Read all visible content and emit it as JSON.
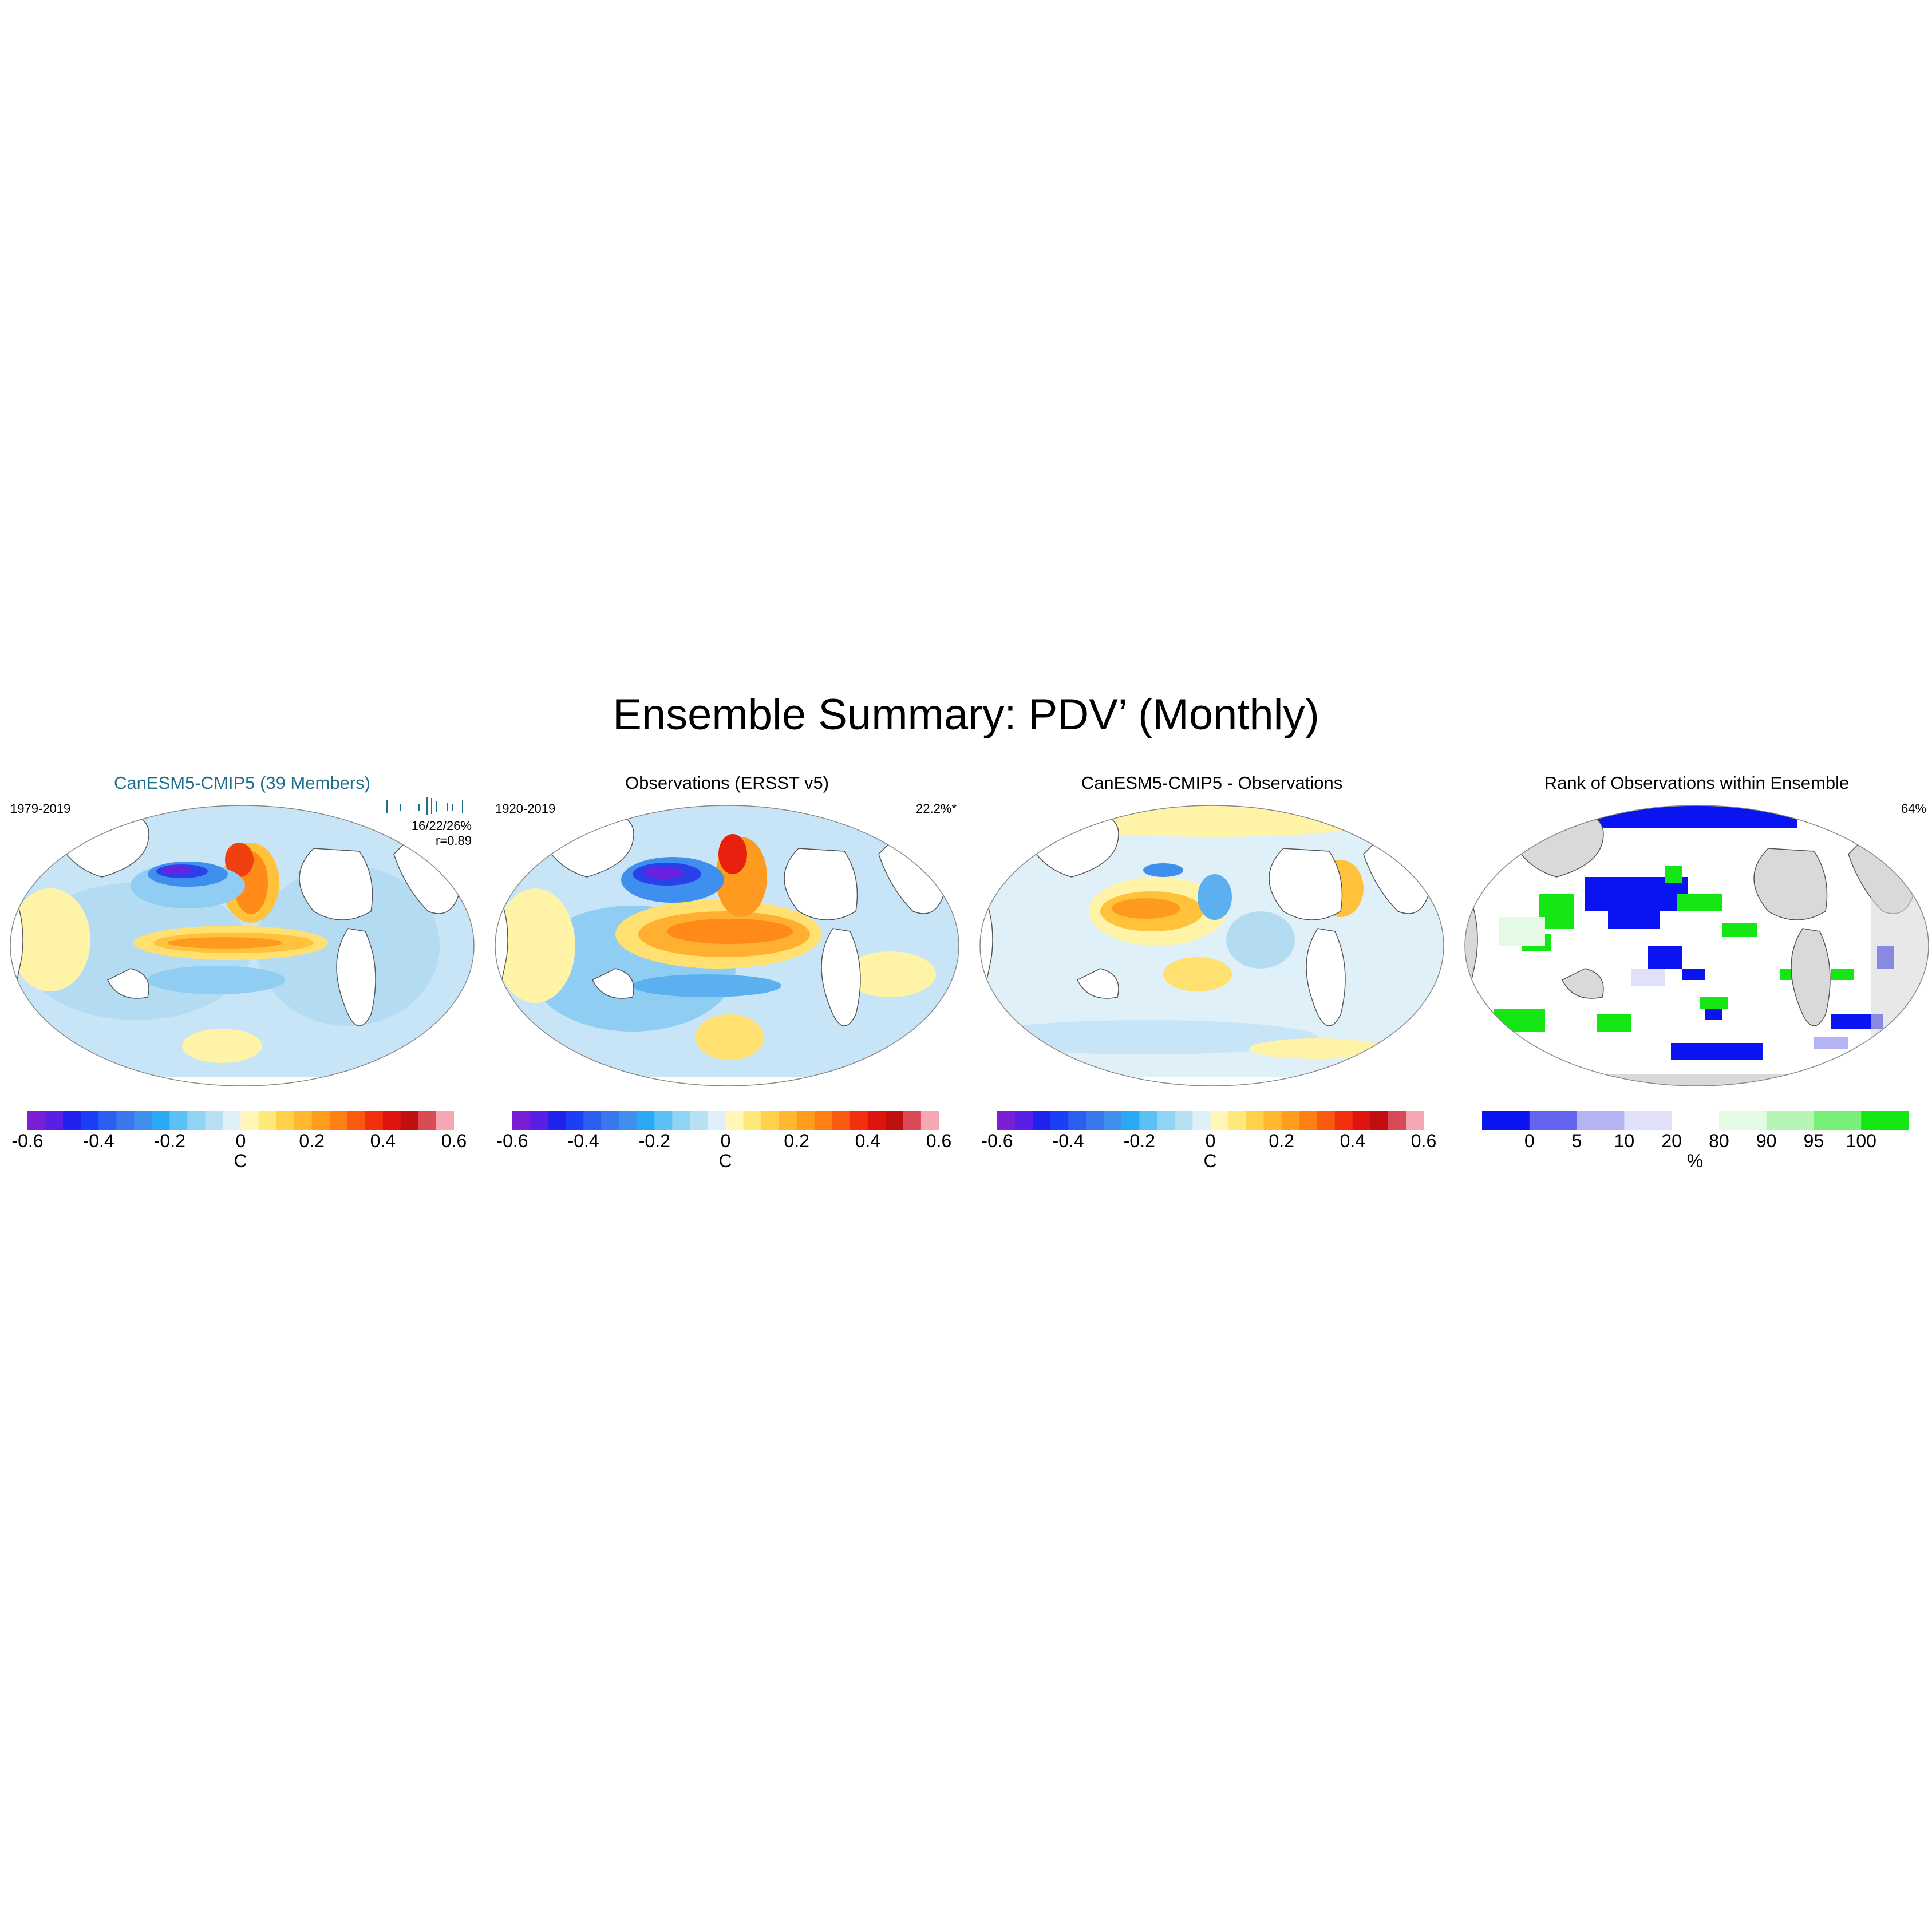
{
  "figure": {
    "title": "Ensemble Summary: PDV’ (Monthly)"
  },
  "panels": [
    {
      "id": "model",
      "title": "CanESM5-CMIP5 (39 Members)",
      "period": "1979-2019",
      "stat_line1": "16/22/26%",
      "stat_line2": "r=0.89",
      "colorbar": {
        "colors": [
          "#7a1fd6",
          "#5a1fe6",
          "#2222ee",
          "#1a3ff5",
          "#2c5ef0",
          "#3a78ee",
          "#3f8fee",
          "#2aa8f4",
          "#5cc0f5",
          "#8fd3f5",
          "#b7e0f3",
          "#dff0f8",
          "#fff6b8",
          "#ffe87a",
          "#ffd04a",
          "#ffb830",
          "#ff9e1c",
          "#ff7f14",
          "#fa5a10",
          "#f2300e",
          "#e0140e",
          "#c00f0f",
          "#d84a56",
          "#f5a8b4"
        ],
        "ticks": [
          "-0.6",
          "-0.4",
          "-0.2",
          "0",
          "0.2",
          "0.4",
          "0.6"
        ],
        "unit": "C"
      }
    },
    {
      "id": "observations",
      "title": "Observations (ERSST v5)",
      "period": "1920-2019",
      "stat_line1": "22.2%*",
      "colorbar": {
        "colors": [
          "#7a1fd6",
          "#5a1fe6",
          "#2222ee",
          "#1a3ff5",
          "#2c5ef0",
          "#3a78ee",
          "#3f8fee",
          "#2aa8f4",
          "#5cc0f5",
          "#8fd3f5",
          "#b7e0f3",
          "#dff0f8",
          "#fff6b8",
          "#ffe87a",
          "#ffd04a",
          "#ffb830",
          "#ff9e1c",
          "#ff7f14",
          "#fa5a10",
          "#f2300e",
          "#e0140e",
          "#c00f0f",
          "#d84a56",
          "#f5a8b4"
        ],
        "ticks": [
          "-0.6",
          "-0.4",
          "-0.2",
          "0",
          "0.2",
          "0.4",
          "0.6"
        ],
        "unit": "C"
      }
    },
    {
      "id": "difference",
      "title": "CanESM5-CMIP5 - Observations",
      "colorbar": {
        "colors": [
          "#7a1fd6",
          "#5a1fe6",
          "#2222ee",
          "#1a3ff5",
          "#2c5ef0",
          "#3a78ee",
          "#3f8fee",
          "#2aa8f4",
          "#5cc0f5",
          "#8fd3f5",
          "#b7e0f3",
          "#dff0f8",
          "#fff6b8",
          "#ffe87a",
          "#ffd04a",
          "#ffb830",
          "#ff9e1c",
          "#ff7f14",
          "#fa5a10",
          "#f2300e",
          "#e0140e",
          "#c00f0f",
          "#d84a56",
          "#f5a8b4"
        ],
        "ticks": [
          "-0.6",
          "-0.4",
          "-0.2",
          "0",
          "0.2",
          "0.4",
          "0.6"
        ],
        "unit": "C"
      }
    },
    {
      "id": "rank",
      "title": "Rank of Observations within Ensemble",
      "stat_line1": "64%",
      "colorbar": {
        "colors": [
          "#0a14f0",
          "#6464f0",
          "#b4b4f5",
          "#e0e0f8",
          "#ffffff",
          "#e4fae4",
          "#b4f5b4",
          "#78f078",
          "#14e614"
        ],
        "ticks": [
          "0",
          "5",
          "10",
          "20",
          "80",
          "90",
          "95",
          "100"
        ],
        "unit": "%"
      }
    }
  ],
  "colors": {
    "land": "#ffffff",
    "land_rank": "#d9d9d9",
    "coast": "#555555",
    "model_title": "#1f6e8c"
  }
}
